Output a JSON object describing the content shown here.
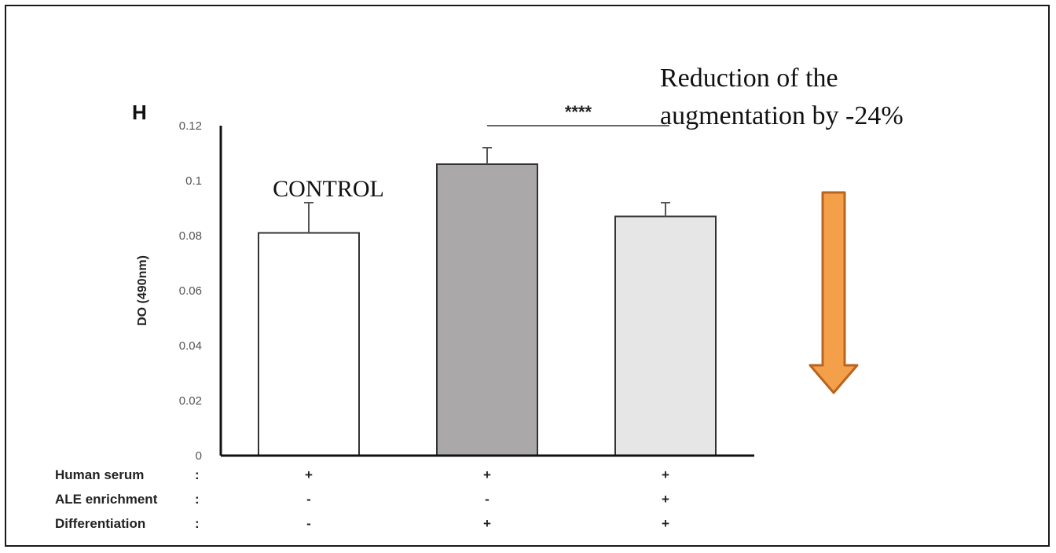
{
  "panel_label": "H",
  "chart_data": {
    "type": "bar",
    "categories": [
      "CONTROL",
      "Differentiation",
      "Differentiation + ALE enrichment"
    ],
    "values": [
      0.081,
      0.106,
      0.087
    ],
    "errors": [
      0.011,
      0.006,
      0.005
    ],
    "bar_colors": [
      "#ffffff",
      "#aba8a9",
      "#e6e6e6"
    ],
    "ylabel": "DO (490nm)",
    "ylim": [
      0,
      0.12
    ],
    "yticks": [
      0,
      0.02,
      0.04,
      0.06,
      0.08,
      0.1,
      0.12
    ],
    "ytick_labels": [
      "0",
      "0.02",
      "0.04",
      "0.06",
      "0.08",
      "0.1",
      "0.12"
    ],
    "bar_label": "CONTROL",
    "significance": {
      "stars": "****",
      "between": [
        1,
        2
      ]
    },
    "annotation": {
      "line1": "Reduction of the",
      "line2": "augmentation by -24%"
    },
    "arrow_color": "#f4a04a",
    "conditions": [
      {
        "label": "Human serum",
        "colon": ":",
        "marks": [
          "+",
          "+",
          "+"
        ]
      },
      {
        "label": "ALE enrichment",
        "colon": ":",
        "marks": [
          "-",
          "-",
          "+"
        ]
      },
      {
        "label": "Differentiation",
        "colon": ":",
        "marks": [
          "-",
          "+",
          "+"
        ]
      }
    ]
  }
}
